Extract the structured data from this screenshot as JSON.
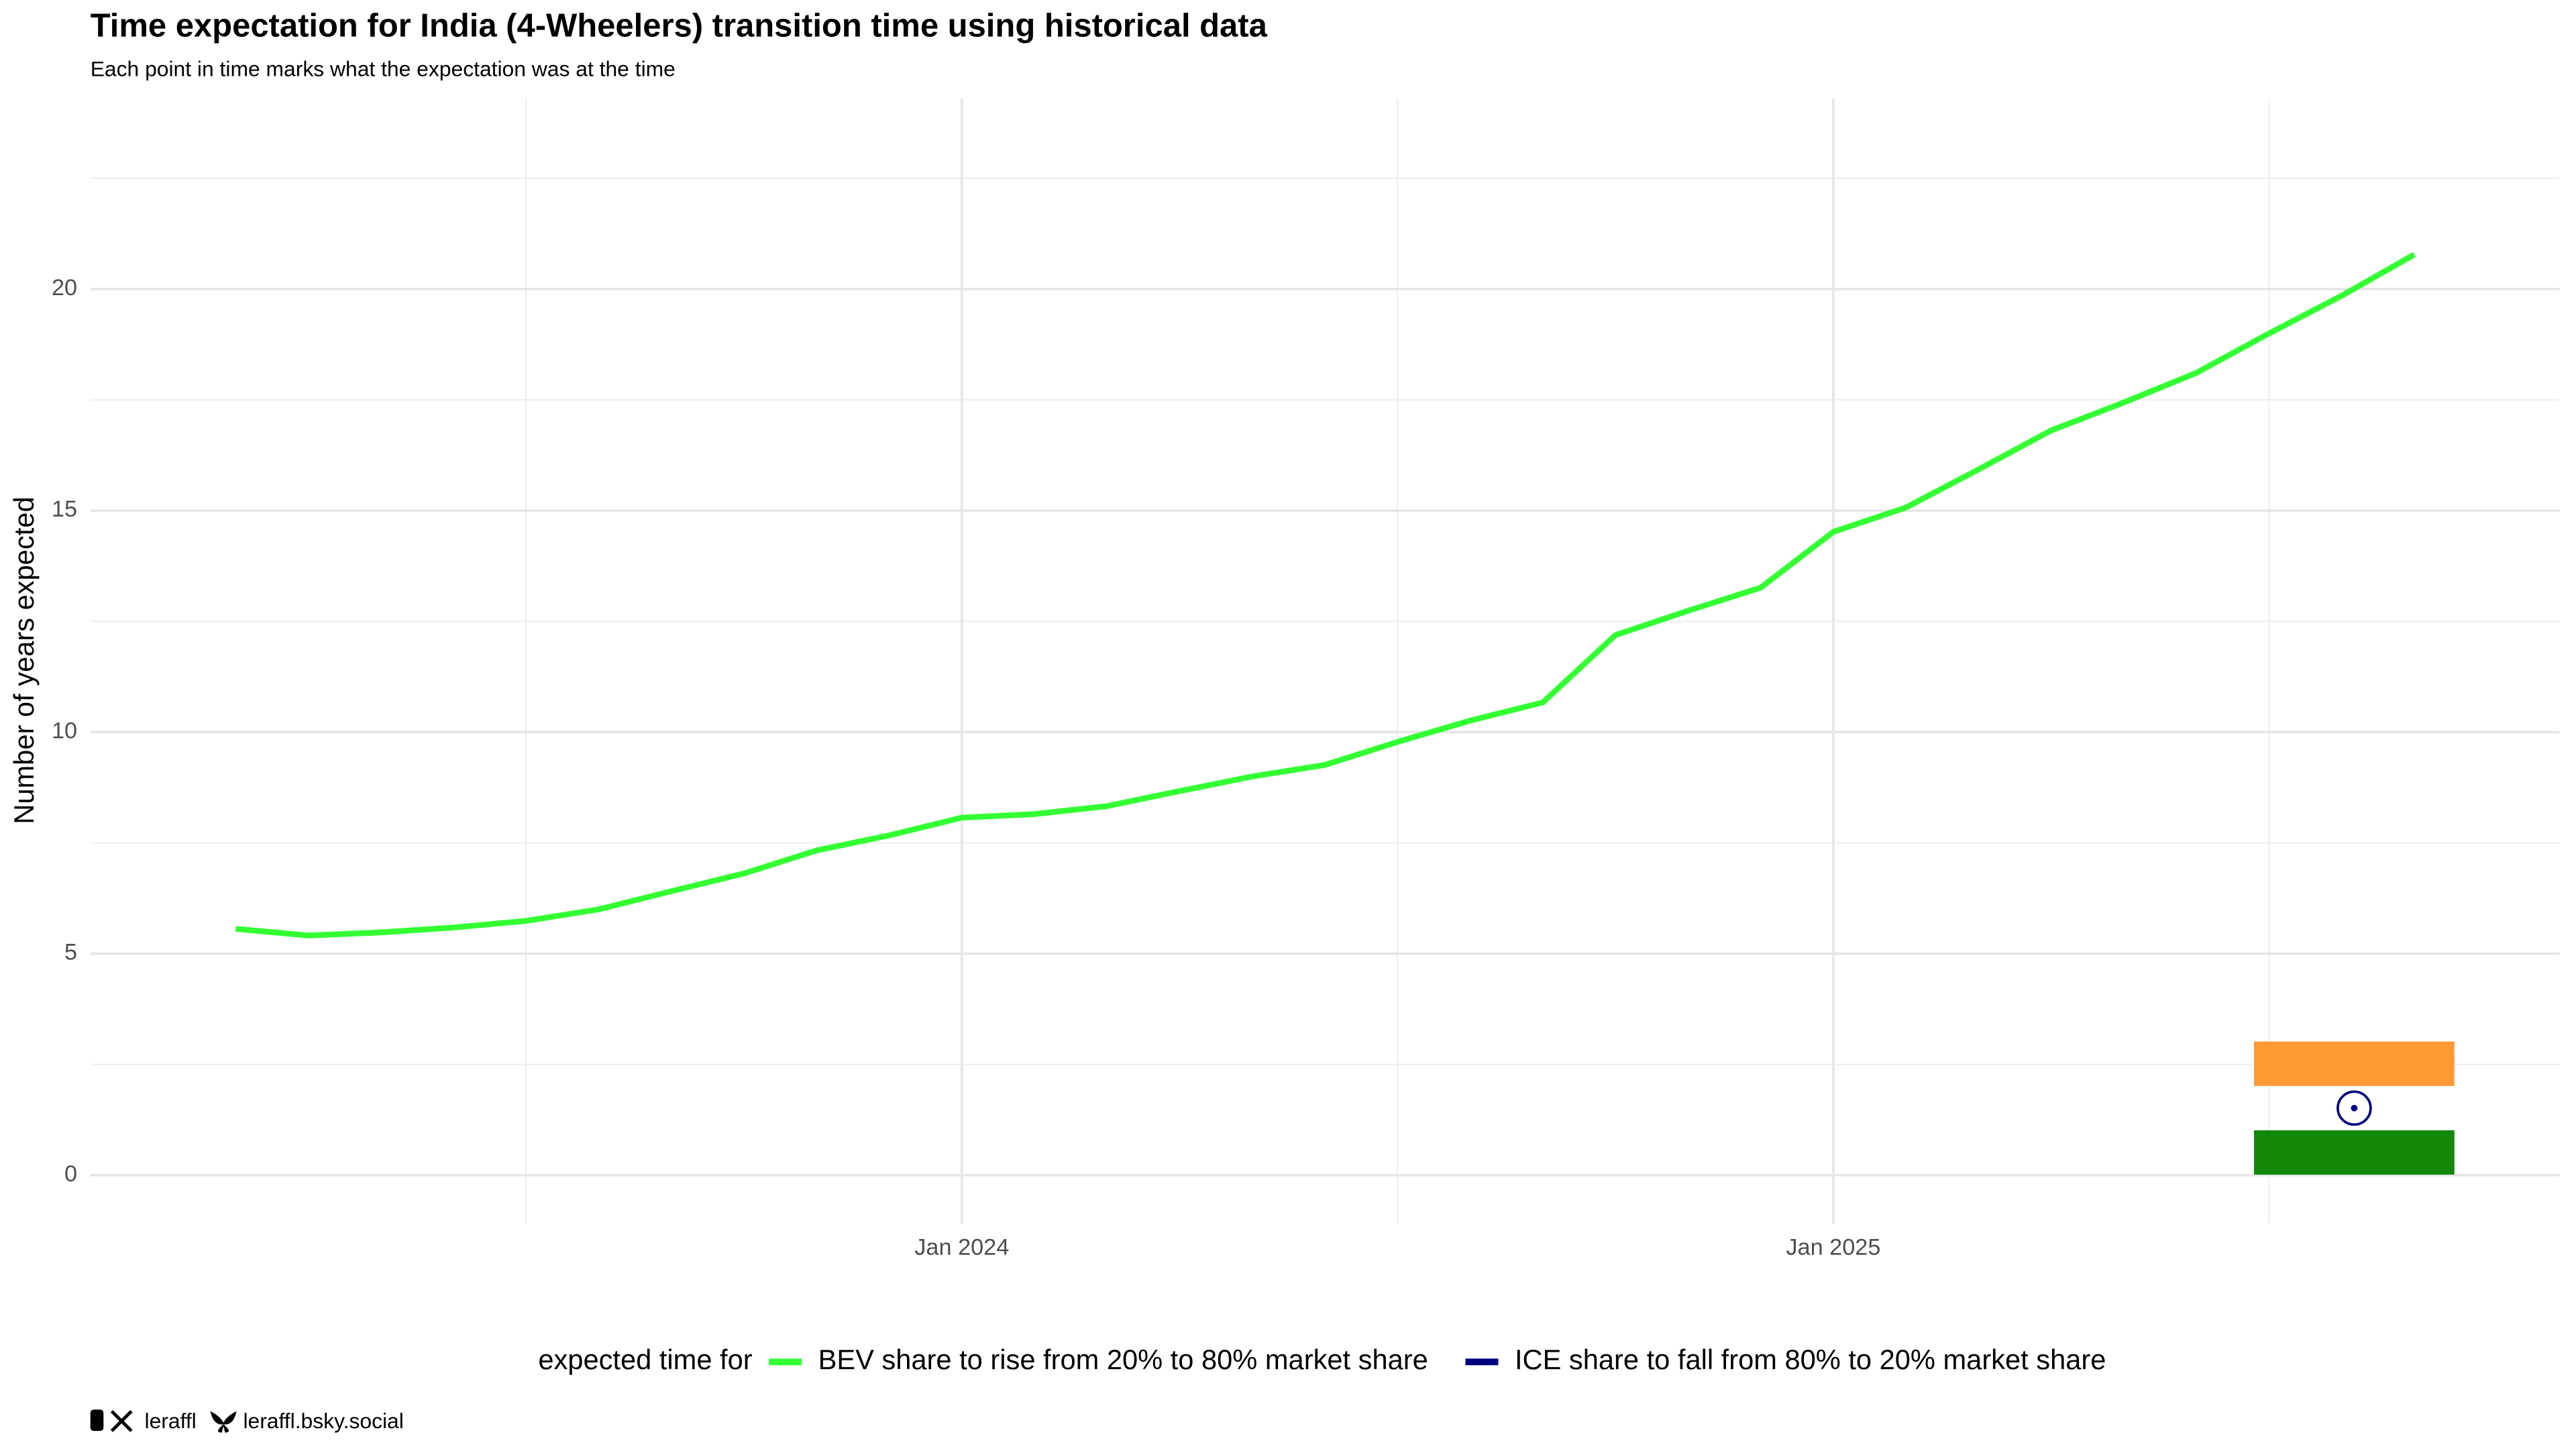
{
  "chart_data": {
    "type": "line",
    "title": "Time expectation for India (4-Wheelers) transition time using historical data",
    "subtitle": "Each point in time marks what the expectation was at the time",
    "y_label": "Number of years expected",
    "legend_title": "expected time for",
    "x": [
      "2023-03",
      "2023-04",
      "2023-05",
      "2023-06",
      "2023-07",
      "2023-08",
      "2023-09",
      "2023-10",
      "2023-11",
      "2023-12",
      "2024-01",
      "2024-02",
      "2024-03",
      "2024-04",
      "2024-05",
      "2024-06",
      "2024-07",
      "2024-08",
      "2024-09",
      "2024-10",
      "2024-11",
      "2024-12",
      "2025-01",
      "2025-02",
      "2025-03",
      "2025-04",
      "2025-05",
      "2025-06",
      "2025-07",
      "2025-08",
      "2025-09"
    ],
    "series": [
      {
        "name": "BEV share to rise from 20% to 80% market share",
        "color": "#33ff33",
        "values": [
          5.56,
          5.41,
          5.48,
          5.59,
          5.74,
          6.0,
          6.41,
          6.81,
          7.33,
          7.67,
          8.07,
          8.15,
          8.33,
          8.67,
          9.0,
          9.26,
          9.78,
          10.26,
          10.67,
          12.19,
          12.74,
          13.26,
          14.52,
          15.07,
          15.93,
          16.81,
          17.44,
          18.11,
          19.0,
          19.85,
          20.78
        ]
      },
      {
        "name": "ICE share to fall from 80% to 20% market share",
        "color": "#000080",
        "values": [
          null,
          null,
          null,
          null,
          null,
          null,
          null,
          null,
          null,
          null,
          null,
          null,
          null,
          null,
          null,
          null,
          null,
          null,
          null,
          null,
          null,
          null,
          null,
          null,
          null,
          null,
          null,
          null,
          null,
          null,
          null
        ]
      }
    ],
    "xlim": [
      "2023-01",
      "2025-11"
    ],
    "xticks": [
      {
        "value": "2024-01",
        "label": "Jan 2024"
      },
      {
        "value": "2025-01",
        "label": "Jan 2025"
      }
    ],
    "ylim": [
      -1.1,
      24.3
    ],
    "yticks": [
      0,
      5,
      10,
      15,
      20
    ],
    "grid": true,
    "legend_position": "bottom",
    "footer": [
      "leraffl",
      "leraffl.bsky.social"
    ]
  }
}
